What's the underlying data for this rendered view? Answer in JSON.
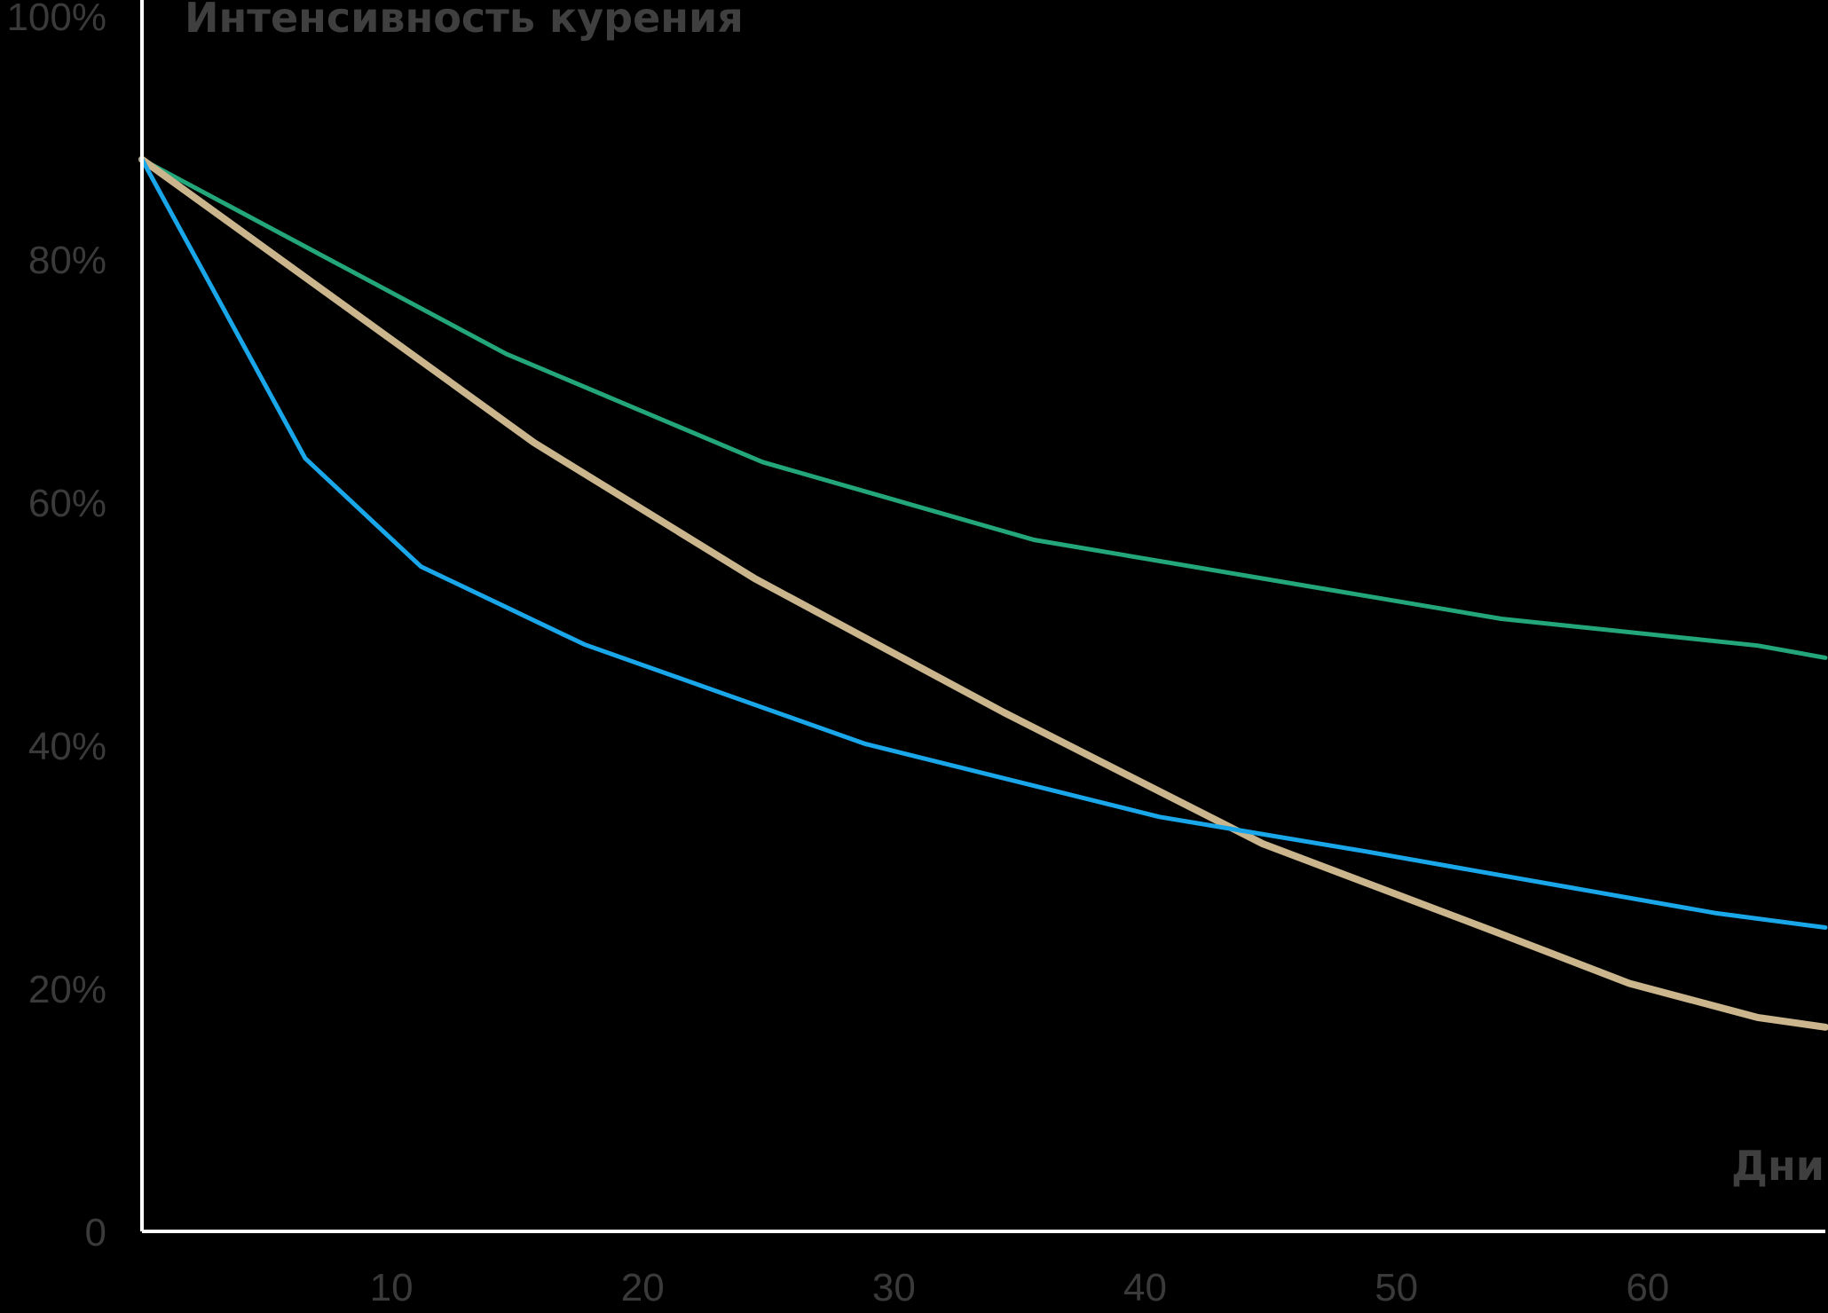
{
  "chart_data": {
    "type": "line",
    "title": "",
    "ylabel": "Интенсивность курения",
    "xlabel": "Дни",
    "xlim": [
      0,
      67
    ],
    "ylim": [
      0,
      100
    ],
    "x_ticks": [
      10,
      20,
      30,
      40,
      50,
      60
    ],
    "x_tick_labels": [
      "10",
      "20",
      "30",
      "40",
      "50",
      "60"
    ],
    "y_ticks": [
      0,
      20,
      40,
      60,
      80,
      100
    ],
    "y_tick_labels": [
      "0",
      "20%",
      "40%",
      "60%",
      "80%",
      "100%"
    ],
    "grid": false,
    "legend": "none",
    "series": [
      {
        "color": "#22a67a",
        "width": 5,
        "points": [
          [
            0,
            88.2
          ],
          [
            14.5,
            72.2
          ],
          [
            24.7,
            63.3
          ],
          [
            35.5,
            56.9
          ],
          [
            54.1,
            50.4
          ],
          [
            64.3,
            48.2
          ],
          [
            67,
            47.2
          ]
        ]
      },
      {
        "color": "#cbb58c",
        "width": 8,
        "points": [
          [
            0,
            88.2
          ],
          [
            7.5,
            77
          ],
          [
            15.6,
            64.9
          ],
          [
            24.4,
            53.7
          ],
          [
            34.3,
            42.7
          ],
          [
            44.6,
            31.9
          ],
          [
            53.8,
            24.7
          ],
          [
            59.2,
            20.4
          ],
          [
            64.3,
            17.6
          ],
          [
            67,
            16.8
          ]
        ]
      },
      {
        "color": "#1aa7ea",
        "width": 5,
        "points": [
          [
            0,
            88.2
          ],
          [
            6.5,
            63.6
          ],
          [
            11.1,
            54.7
          ],
          [
            17.6,
            48.3
          ],
          [
            28.8,
            40.1
          ],
          [
            40.5,
            34.1
          ],
          [
            48.6,
            31.3
          ],
          [
            62.6,
            26.2
          ],
          [
            67,
            25
          ]
        ]
      }
    ]
  }
}
